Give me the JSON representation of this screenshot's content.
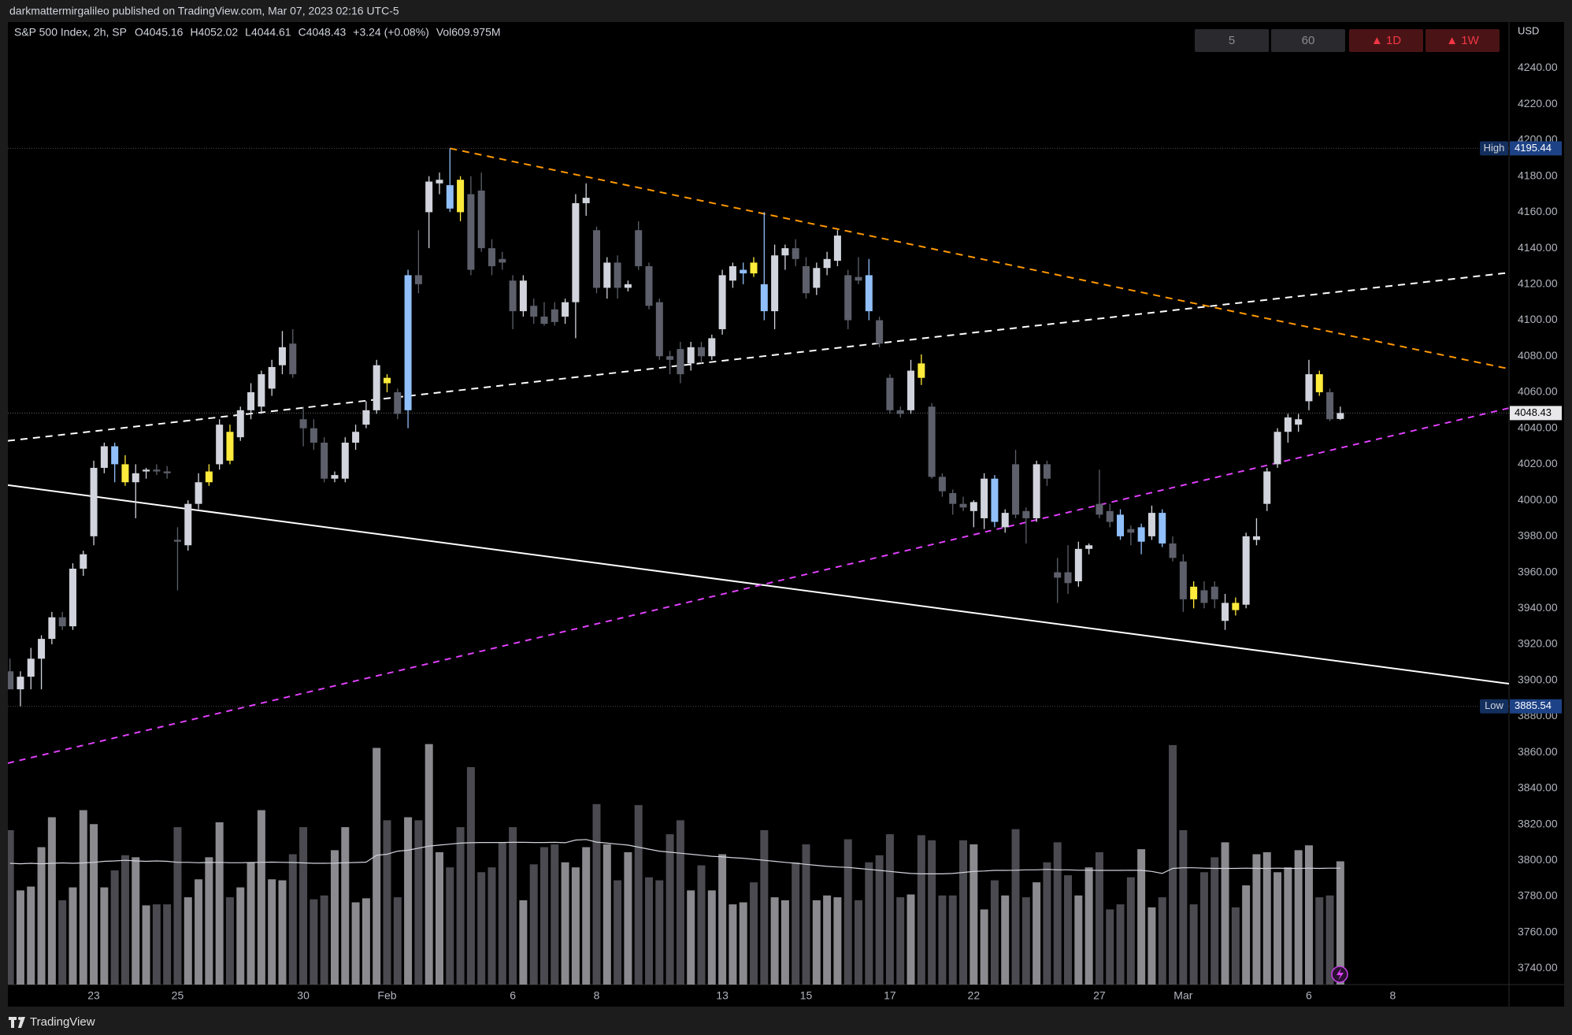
{
  "header": {
    "published": "darkmattermirgalileo published on TradingView.com, Mar 07, 2023 02:16 UTC-5"
  },
  "footer": {
    "brand": "TradingView"
  },
  "chart_data": {
    "type": "candlestick",
    "symbol": "S&P 500 Index, 2h, SP",
    "ohlc_legend": [
      "O4045.16",
      "H4052.02",
      "L4044.61",
      "C4048.43",
      "+3.24 (+0.08%)",
      "Vol609.975M"
    ],
    "currency": "USD",
    "buttons": [
      "5",
      "60",
      "▲ 1D",
      "▲ 1W"
    ],
    "xlim": [
      -0.2,
      143.1
    ],
    "xticks": [
      {
        "value": 8,
        "label": "23"
      },
      {
        "value": 16,
        "label": "25"
      },
      {
        "value": 28,
        "label": "30"
      },
      {
        "value": 36,
        "label": "Feb"
      },
      {
        "value": 48,
        "label": "6"
      },
      {
        "value": 56,
        "label": "8"
      },
      {
        "value": 68,
        "label": "13"
      },
      {
        "value": 76,
        "label": "15"
      },
      {
        "value": 84,
        "label": "17"
      },
      {
        "value": 92,
        "label": "22"
      },
      {
        "value": 104,
        "label": "27"
      },
      {
        "value": 112,
        "label": "Mar"
      },
      {
        "value": 124,
        "label": "6"
      },
      {
        "value": 132,
        "label": "8"
      }
    ],
    "ylim": [
      3731,
      4265.6
    ],
    "yticks": [
      {
        "value": 3740,
        "label": "3740.00"
      },
      {
        "value": 3760,
        "label": "3760.00"
      },
      {
        "value": 3780,
        "label": "3780.00"
      },
      {
        "value": 3800,
        "label": "3800.00"
      },
      {
        "value": 3820,
        "label": "3820.00"
      },
      {
        "value": 3840,
        "label": "3840.00"
      },
      {
        "value": 3860,
        "label": "3860.00"
      },
      {
        "value": 3880,
        "label": "3880.00"
      },
      {
        "value": 3900,
        "label": "3900.00"
      },
      {
        "value": 3920,
        "label": "3920.00"
      },
      {
        "value": 3940,
        "label": "3940.00"
      },
      {
        "value": 3960,
        "label": "3960.00"
      },
      {
        "value": 3980,
        "label": "3980.00"
      },
      {
        "value": 4000,
        "label": "4000.00"
      },
      {
        "value": 4020,
        "label": "4020.00"
      },
      {
        "value": 4040,
        "label": "4040.00"
      },
      {
        "value": 4060,
        "label": "4060.00"
      },
      {
        "value": 4080,
        "label": "4080.00"
      },
      {
        "value": 4100,
        "label": "4100.00"
      },
      {
        "value": 4120,
        "label": "4120.00"
      },
      {
        "value": 4140,
        "label": "4140.00"
      },
      {
        "value": 4160,
        "label": "4160.00"
      },
      {
        "value": 4180,
        "label": "4180.00"
      },
      {
        "value": 4200,
        "label": "4200.00"
      },
      {
        "value": 4220,
        "label": "4220.00"
      },
      {
        "value": 4240,
        "label": "4240.00"
      }
    ],
    "grid": false,
    "open": [
      3905,
      3895,
      3902,
      3912,
      3923,
      3935,
      3930,
      3962,
      3980,
      4018,
      4030,
      4020,
      4010,
      4016,
      4017,
      4016,
      3978,
      3975,
      3998,
      4010,
      4020,
      4038,
      4035,
      4050,
      4052,
      4062,
      4075,
      4087,
      4045,
      4040,
      4032,
      4012,
      4012,
      4032,
      4042,
      4050,
      4068,
      4060,
      4050,
      4125,
      4160,
      4176,
      4175,
      4178,
      4170,
      4172,
      4140,
      4134,
      4122,
      4105,
      4108,
      4102,
      4106,
      4102,
      4110,
      4165,
      4150,
      4118,
      4132,
      4118,
      4150,
      4130,
      4110,
      4080,
      4084,
      4076,
      4085,
      4080,
      4095,
      4122,
      4126,
      4132,
      4120,
      4105,
      4136,
      4140,
      4130,
      4118,
      4129,
      4133,
      4125,
      4124,
      4125,
      4100,
      4068,
      4050,
      4050,
      4076,
      4052,
      4013,
      4004,
      3998,
      3994,
      3990,
      4012,
      3985,
      4020,
      3994,
      3990,
      4020,
      3960,
      3960,
      3955,
      3973,
      3998,
      3994,
      3992,
      3984,
      3977,
      3980,
      3993,
      3976,
      3966,
      3952,
      3950,
      3952,
      3933,
      3943,
      3942,
      3978,
      3998,
      4020,
      4038,
      4042,
      4055,
      4070,
      4060,
      4045.16
    ],
    "high": [
      3912,
      3905,
      3918,
      3925,
      3938,
      3938,
      3965,
      3972,
      4022,
      4032,
      4032,
      4025,
      4020,
      4018,
      4020,
      4019,
      3985,
      4000,
      4015,
      4020,
      4045,
      4042,
      4052,
      4065,
      4072,
      4078,
      4094,
      4095,
      4052,
      4045,
      4035,
      4016,
      4035,
      4042,
      4055,
      4078,
      4070,
      4062,
      4128,
      4150,
      4180,
      4182,
      4195.44,
      4180,
      4180,
      4182,
      4145,
      4138,
      4125,
      4125,
      4112,
      4110,
      4110,
      4112,
      4170,
      4176,
      4152,
      4135,
      4136,
      4122,
      4155,
      4132,
      4112,
      4083,
      4088,
      4088,
      4088,
      4092,
      4128,
      4132,
      4132,
      4135,
      4160,
      4142,
      4142,
      4145,
      4135,
      4132,
      4138,
      4150,
      4128,
      4135,
      4134,
      4102,
      4070,
      4052,
      4078,
      4081,
      4054,
      4015,
      4006,
      4002,
      4000,
      4015,
      4014,
      3995,
      4028,
      3996,
      4022,
      4022,
      3968,
      3975,
      3977,
      3976,
      4017,
      3998,
      3995,
      3986,
      3987,
      3997,
      3995,
      3980,
      3970,
      3955,
      3955,
      3955,
      3948,
      3946,
      3982,
      3990,
      4018,
      4040,
      4048,
      4048,
      4078,
      4072,
      4062,
      4052.02
    ],
    "low": [
      3895,
      3885.54,
      3895,
      3895,
      3920,
      3928,
      3928,
      3958,
      3975,
      4015,
      4010,
      4008,
      3990,
      4012,
      4014,
      4012,
      3950,
      3972,
      3995,
      4008,
      4017,
      4020,
      4033,
      4045,
      4048,
      4058,
      4070,
      4068,
      4030,
      4028,
      4010,
      4010,
      4010,
      4028,
      4040,
      4048,
      4060,
      4045,
      4040,
      4115,
      4140,
      4170,
      4160,
      4155,
      4125,
      4138,
      4125,
      4128,
      4095,
      4102,
      4098,
      4097,
      4097,
      4098,
      4090,
      4158,
      4115,
      4112,
      4112,
      4116,
      4128,
      4106,
      4078,
      4070,
      4065,
      4072,
      4076,
      4078,
      4092,
      4118,
      4120,
      4124,
      4100,
      4095,
      4128,
      4130,
      4112,
      4114,
      4125,
      4130,
      4095,
      4120,
      4100,
      4085,
      4048,
      4046,
      4048,
      4064,
      4012,
      4002,
      3992,
      3994,
      3985,
      3984,
      3985,
      3982,
      3990,
      3976,
      3988,
      4008,
      3943,
      3948,
      3952,
      3970,
      3990,
      3985,
      3978,
      3975,
      3970,
      3978,
      3974,
      3966,
      3938,
      3940,
      3940,
      3940,
      3928,
      3936,
      3940,
      3975,
      3994,
      4018,
      4032,
      4038,
      4050,
      4058,
      4044,
      4044.61
    ],
    "close": [
      3895,
      3902,
      3912,
      3923,
      3935,
      3930,
      3962,
      3970,
      4018,
      4030,
      4020,
      4010,
      4015,
      4017,
      4016,
      4015,
      3977,
      3998,
      4010,
      4016,
      4042,
      4022,
      4050,
      4060,
      4070,
      4074,
      4085,
      4070,
      4040,
      4032,
      4012,
      4014,
      4032,
      4038,
      4050,
      4075,
      4065,
      4048,
      4125,
      4120,
      4177,
      4178,
      4162,
      4160,
      4128,
      4140,
      4130,
      4132,
      4105,
      4122,
      4102,
      4098,
      4099,
      4110,
      4165,
      4168,
      4118,
      4132,
      4118,
      4120,
      4130,
      4108,
      4080,
      4078,
      4070,
      4085,
      4080,
      4090,
      4125,
      4130,
      4128,
      4126,
      4105,
      4136,
      4140,
      4134,
      4115,
      4129,
      4134,
      4147,
      4100,
      4122,
      4105,
      4087,
      4050,
      4048,
      4072,
      4068,
      4013,
      4005,
      3998,
      3996,
      3999,
      4012,
      3988,
      3993,
      3992,
      3990,
      4020,
      4012,
      3957,
      3954,
      3973,
      3975,
      3992,
      3988,
      3980,
      3982,
      3985,
      3993,
      3976,
      3968,
      3945,
      3945,
      3943,
      3945,
      3943,
      3939,
      3980,
      3980,
      4016,
      4038,
      4046,
      4045,
      4070,
      4060,
      4045,
      4048.43
    ],
    "colors": [
      "#5d606b",
      "#d1d4dc",
      "#d1d4dc",
      "#d1d4dc",
      "#d1d4dc",
      "#5d606b",
      "#d1d4dc",
      "#d1d4dc",
      "#d1d4dc",
      "#d1d4dc",
      "#90bff9",
      "#ffeb3b",
      "#d1d4dc",
      "#d1d4dc",
      "#5d606b",
      "#5d606b",
      "#5d606b",
      "#d1d4dc",
      "#d1d4dc",
      "#ffeb3b",
      "#d1d4dc",
      "#ffeb3b",
      "#d1d4dc",
      "#d1d4dc",
      "#d1d4dc",
      "#d1d4dc",
      "#d1d4dc",
      "#5d606b",
      "#5d606b",
      "#5d606b",
      "#5d606b",
      "#d1d4dc",
      "#d1d4dc",
      "#d1d4dc",
      "#d1d4dc",
      "#d1d4dc",
      "#ffeb3b",
      "#5d606b",
      "#90bff9",
      "#5d606b",
      "#d1d4dc",
      "#d1d4dc",
      "#90bff9",
      "#ffeb3b",
      "#5d606b",
      "#5d606b",
      "#5d606b",
      "#5d606b",
      "#5d606b",
      "#d1d4dc",
      "#5d606b",
      "#5d606b",
      "#5d606b",
      "#d1d4dc",
      "#d1d4dc",
      "#d1d4dc",
      "#5d606b",
      "#d1d4dc",
      "#5d606b",
      "#d1d4dc",
      "#5d606b",
      "#5d606b",
      "#5d606b",
      "#5d606b",
      "#5d606b",
      "#d1d4dc",
      "#5d606b",
      "#d1d4dc",
      "#d1d4dc",
      "#d1d4dc",
      "#90bff9",
      "#ffeb3b",
      "#90bff9",
      "#d1d4dc",
      "#d1d4dc",
      "#5d606b",
      "#5d606b",
      "#d1d4dc",
      "#d1d4dc",
      "#d1d4dc",
      "#5d606b",
      "#5d606b",
      "#90bff9",
      "#5d606b",
      "#5d606b",
      "#5d606b",
      "#d1d4dc",
      "#ffeb3b",
      "#5d606b",
      "#5d606b",
      "#5d606b",
      "#5d606b",
      "#d1d4dc",
      "#d1d4dc",
      "#90bff9",
      "#d1d4dc",
      "#5d606b",
      "#5d606b",
      "#d1d4dc",
      "#5d606b",
      "#5d606b",
      "#5d606b",
      "#d1d4dc",
      "#d1d4dc",
      "#5d606b",
      "#5d606b",
      "#90bff9",
      "#5d606b",
      "#90bff9",
      "#d1d4dc",
      "#90bff9",
      "#5d606b",
      "#5d606b",
      "#ffeb3b",
      "#5d606b",
      "#5d606b",
      "#d1d4dc",
      "#ffeb3b",
      "#d1d4dc",
      "#d1d4dc",
      "#d1d4dc",
      "#d1d4dc",
      "#d1d4dc",
      "#d1d4dc",
      "#d1d4dc",
      "#ffeb3b",
      "#5d606b",
      "#d1d4dc"
    ],
    "volume": [
      764,
      466,
      485,
      680,
      828,
      417,
      481,
      863,
      794,
      481,
      565,
      640,
      630,
      392,
      397,
      397,
      779,
      432,
      521,
      630,
      803,
      432,
      481,
      605,
      863,
      521,
      516,
      645,
      779,
      422,
      441,
      665,
      779,
      407,
      427,
      1171,
      813,
      432,
      828,
      813,
      1190,
      655,
      580,
      779,
      1076,
      556,
      580,
      704,
      779,
      417,
      595,
      680,
      694,
      605,
      580,
      680,
      893,
      694,
      516,
      655,
      888,
      531,
      516,
      744,
      813,
      466,
      590,
      466,
      645,
      397,
      407,
      506,
      764,
      432,
      417,
      605,
      694,
      417,
      441,
      432,
      719,
      417,
      605,
      640,
      744,
      432,
      446,
      739,
      714,
      441,
      441,
      714,
      694,
      372,
      516,
      441,
      769,
      432,
      506,
      605,
      704,
      541,
      441,
      580,
      655,
      372,
      397,
      531,
      670,
      382,
      432,
      1185,
      764,
      397,
      556,
      630,
      704,
      382,
      491,
      645,
      655,
      556,
      580,
      665,
      689,
      432,
      441,
      609.975
    ],
    "volume_up_color": "#8a8a8f",
    "volume_down_color": "#4a4a50",
    "volume_ma": [
      600,
      598,
      600,
      598,
      600,
      602,
      600,
      602,
      605,
      610,
      612,
      615,
      612,
      610,
      612,
      610,
      605,
      605,
      603,
      604,
      605,
      603,
      603,
      604,
      605,
      606,
      605,
      604,
      602,
      600,
      600,
      601,
      603,
      604,
      606,
      640,
      645,
      660,
      665,
      675,
      685,
      690,
      695,
      700,
      702,
      703,
      703,
      703,
      704,
      704,
      703,
      703,
      704,
      702,
      715,
      718,
      705,
      700,
      695,
      690,
      680,
      670,
      660,
      655,
      650,
      645,
      640,
      635,
      632,
      628,
      625,
      620,
      615,
      610,
      605,
      600,
      595,
      590,
      585,
      582,
      580,
      575,
      570,
      565,
      560,
      555,
      550,
      548,
      548,
      548,
      550,
      555,
      560,
      562,
      565,
      565,
      566,
      568,
      568,
      570,
      568,
      568,
      566,
      566,
      565,
      565,
      565,
      566,
      565,
      560,
      550,
      575,
      578,
      578,
      576,
      575,
      575,
      575,
      576,
      575,
      575,
      576,
      575,
      575,
      576,
      575,
      576,
      576
    ],
    "volume_ma_color": "#d1d4dc",
    "trendlines": [
      {
        "color": "#ff9800",
        "dash": "9 7",
        "x": [
          42,
          143.1
        ],
        "y": [
          4195.44,
          4073
        ]
      },
      {
        "color": "#ffffff",
        "dash": "9 7",
        "x": [
          -0.2,
          143.1
        ],
        "y": [
          4033,
          4126.4
        ]
      },
      {
        "color": "#ffffff",
        "dash": "none",
        "x": [
          -0.2,
          143.1
        ],
        "y": [
          4008.4,
          3898.1
        ]
      },
      {
        "color": "#e040fb",
        "dash": "8 7",
        "x": [
          -0.2,
          143.1
        ],
        "y": [
          3854,
          4051.2
        ]
      }
    ],
    "high_marker": {
      "label": "High",
      "value": 4195.44
    },
    "low_marker": {
      "label": "Low",
      "value": 3885.54
    }
  }
}
